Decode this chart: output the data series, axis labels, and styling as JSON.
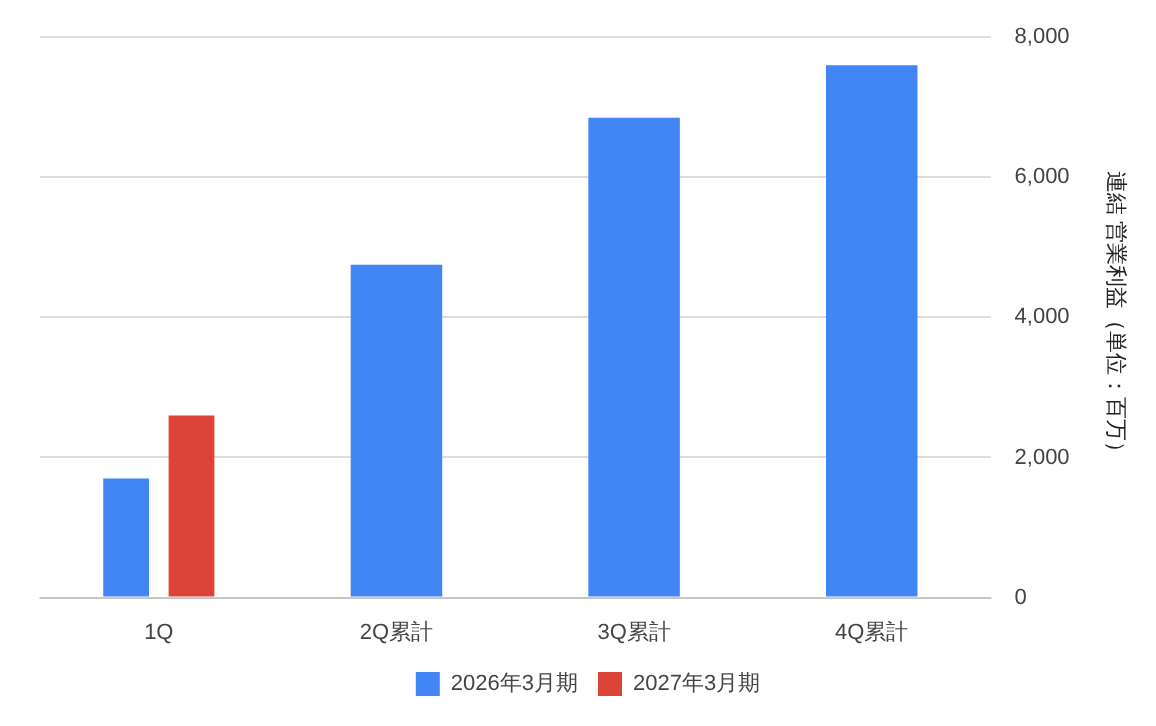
{
  "chart_data": {
    "type": "bar",
    "ylabel": "連結 営業利益（単位：百万）",
    "categories": [
      "1Q",
      "2Q累計",
      "3Q累計",
      "4Q累計"
    ],
    "series": [
      {
        "name": "2026年3月期",
        "color": "#4285f4",
        "values": [
          1700,
          4750,
          6850,
          7600
        ]
      },
      {
        "name": "2027年3月期",
        "color": "#db4437",
        "values": [
          2600,
          null,
          null,
          null
        ]
      }
    ],
    "ylim": [
      0,
      8000
    ],
    "yticks": [
      0,
      {
        "value": 2000,
        "label": "2,000"
      },
      {
        "value": 4000,
        "label": "4,000"
      },
      {
        "value": 6000,
        "label": "6,000"
      },
      {
        "value": 8000,
        "label": "8,000"
      }
    ],
    "grid": "y",
    "legend": "bottom"
  }
}
